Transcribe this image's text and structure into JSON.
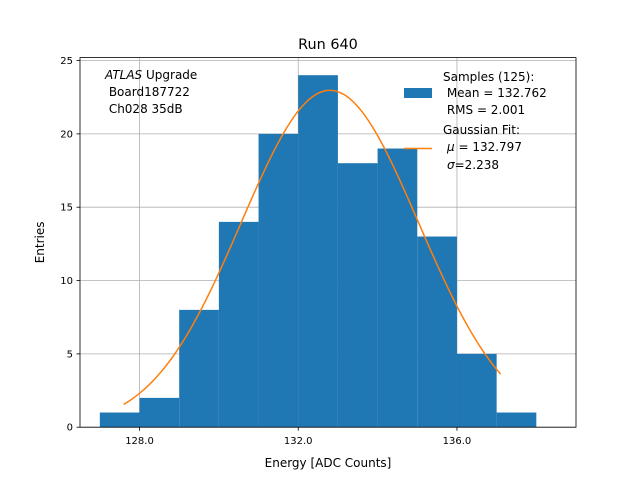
{
  "chart_data": {
    "type": "bar",
    "title": "Run 640",
    "xlabel": "Energy [ADC Counts]",
    "ylabel": "Entries",
    "xlim": [
      126.5,
      139.0
    ],
    "ylim": [
      0,
      25.2
    ],
    "xticks": [
      128.0,
      132.0,
      136.0
    ],
    "xtick_labels": [
      "128.0",
      "132.0",
      "136.0"
    ],
    "yticks": [
      0,
      5,
      10,
      15,
      20,
      25
    ],
    "ytick_labels": [
      "0",
      "5",
      "10",
      "15",
      "20",
      "25"
    ],
    "grid": true,
    "bins": [
      {
        "x0": 127.0,
        "x1": 128.0,
        "count": 1
      },
      {
        "x0": 128.0,
        "x1": 129.0,
        "count": 2
      },
      {
        "x0": 129.0,
        "x1": 130.0,
        "count": 8
      },
      {
        "x0": 130.0,
        "x1": 131.0,
        "count": 14
      },
      {
        "x0": 131.0,
        "x1": 132.0,
        "count": 20
      },
      {
        "x0": 132.0,
        "x1": 133.0,
        "count": 24
      },
      {
        "x0": 133.0,
        "x1": 134.0,
        "count": 18
      },
      {
        "x0": 134.0,
        "x1": 135.0,
        "count": 19
      },
      {
        "x0": 135.0,
        "x1": 136.0,
        "count": 13
      },
      {
        "x0": 136.0,
        "x1": 137.0,
        "count": 5
      },
      {
        "x0": 137.0,
        "x1": 138.0,
        "count": 1
      }
    ],
    "fit": {
      "amplitude": 22.97,
      "mu": 132.797,
      "sigma": 2.238,
      "x_range": [
        127.6,
        137.1
      ]
    },
    "colors": {
      "histogram": "#1f77b4",
      "fit": "#ff7f0e"
    },
    "annotation": {
      "italic": "ATLAS",
      "rest": " Upgrade",
      "line2": " Board187722",
      "line3": " Ch028 35dB"
    },
    "legend": {
      "placement": "top-right",
      "hist_line1": "Samples (125):",
      "hist_line2": " Mean = 132.762",
      "hist_line3": " RMS = 2.001",
      "fit_line1": "Gaussian Fit:",
      "fit_mu_symbol": "μ",
      "fit_mu_value": " = 132.797",
      "fit_sigma_symbol": "σ",
      "fit_sigma_value": "=2.238"
    }
  }
}
